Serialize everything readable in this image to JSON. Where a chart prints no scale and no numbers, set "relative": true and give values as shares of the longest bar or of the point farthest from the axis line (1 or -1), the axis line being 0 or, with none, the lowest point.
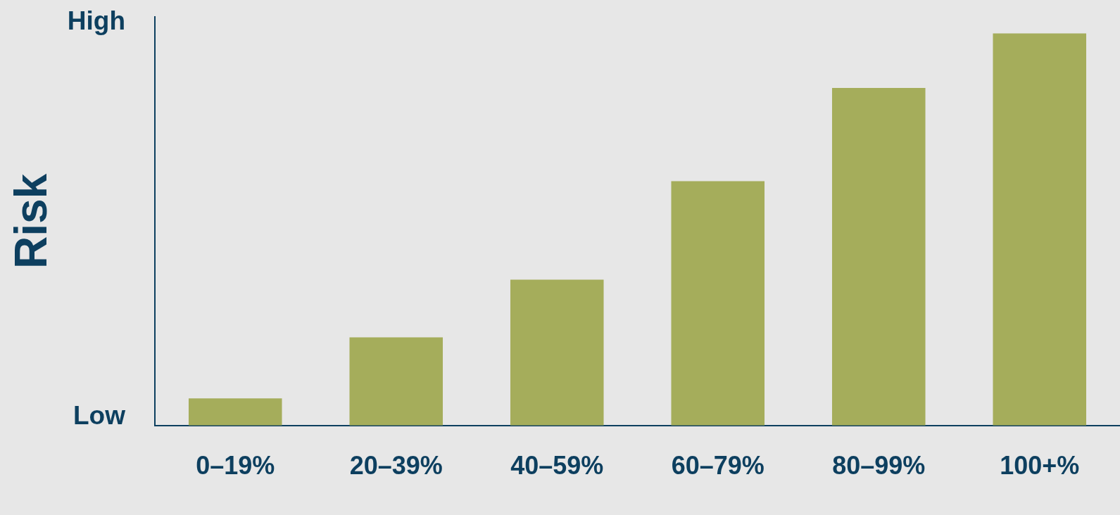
{
  "chart_data": {
    "type": "bar",
    "relative": true,
    "ylabel": "Risk",
    "categories": [
      "0–19%",
      "20–39%",
      "40–59%",
      "60–79%",
      "80–99%",
      "100+%"
    ],
    "values": [
      0.069,
      0.225,
      0.372,
      0.623,
      0.861,
      1
    ],
    "color": "#a5ad5b",
    "grid": false,
    "legend": false,
    "annotations": [
      "High",
      "Low"
    ]
  }
}
